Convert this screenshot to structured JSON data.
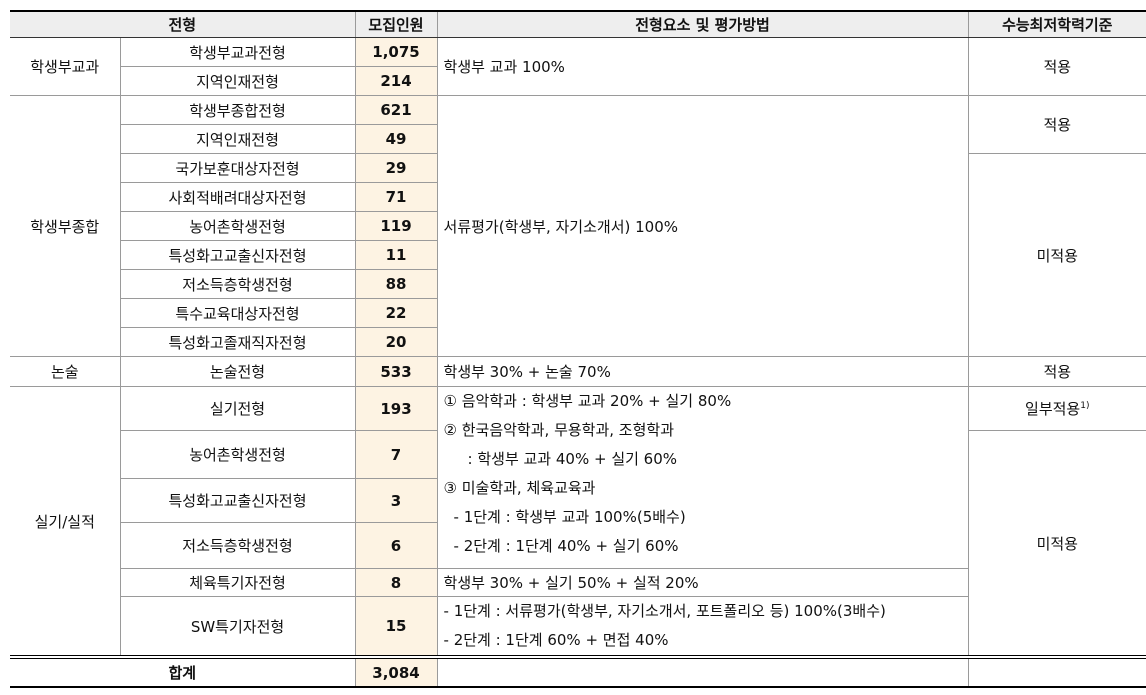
{
  "header": {
    "selection": "전형",
    "quota": "모집인원",
    "method": "전형요소 및 평가방법",
    "csat": "수능최저학력기준"
  },
  "categories": [
    "학생부교과",
    "학생부종합",
    "논술",
    "실기/실적"
  ],
  "rows": [
    {
      "name": "학생부교과전형",
      "quota": "1,075"
    },
    {
      "name": "지역인재전형",
      "quota": "214"
    },
    {
      "name": "학생부종합전형",
      "quota": "621"
    },
    {
      "name": "지역인재전형",
      "quota": "49"
    },
    {
      "name": "국가보훈대상자전형",
      "quota": "29"
    },
    {
      "name": "사회적배려대상자전형",
      "quota": "71"
    },
    {
      "name": "농어촌학생전형",
      "quota": "119"
    },
    {
      "name": "특성화고교출신자전형",
      "quota": "11"
    },
    {
      "name": "저소득층학생전형",
      "quota": "88"
    },
    {
      "name": "특수교육대상자전형",
      "quota": "22"
    },
    {
      "name": "특성화고졸재직자전형",
      "quota": "20"
    },
    {
      "name": "논술전형",
      "quota": "533"
    },
    {
      "name": "실기전형",
      "quota": "193"
    },
    {
      "name": "농어촌학생전형",
      "quota": "7"
    },
    {
      "name": "특성화고교출신자전형",
      "quota": "3"
    },
    {
      "name": "저소득층학생전형",
      "quota": "6"
    },
    {
      "name": "체육특기자전형",
      "quota": "8"
    },
    {
      "name": "SW특기자전형",
      "quota": "15"
    }
  ],
  "methods": {
    "subject": "학생부 교과 100%",
    "document": "서류평가(학생부, 자기소개서) 100%",
    "essay": "학생부 30% + 논술 70%",
    "practical": [
      "① 음악학과 : 학생부 교과 20% + 실기 80%",
      "② 한국음악학과, 무용학과, 조형학과",
      ": 학생부 교과 40% + 실기 60%",
      "③ 미술학과, 체육교육과",
      "- 1단계 : 학생부 교과 100%(5배수)",
      "- 2단계 : 1단계 40% + 실기 60%"
    ],
    "sports": "학생부 30% + 실기 50% + 실적 20%",
    "sw": [
      "- 1단계 : 서류평가(학생부, 자기소개서, 포트폴리오 등) 100%(3배수)",
      "- 2단계 : 1단계 60% + 면접 40%"
    ]
  },
  "csat": {
    "apply": "적용",
    "notApply": "미적용",
    "partial": "일부적용",
    "partialNote": "1)"
  },
  "total": {
    "label": "합계",
    "quota": "3,084"
  }
}
